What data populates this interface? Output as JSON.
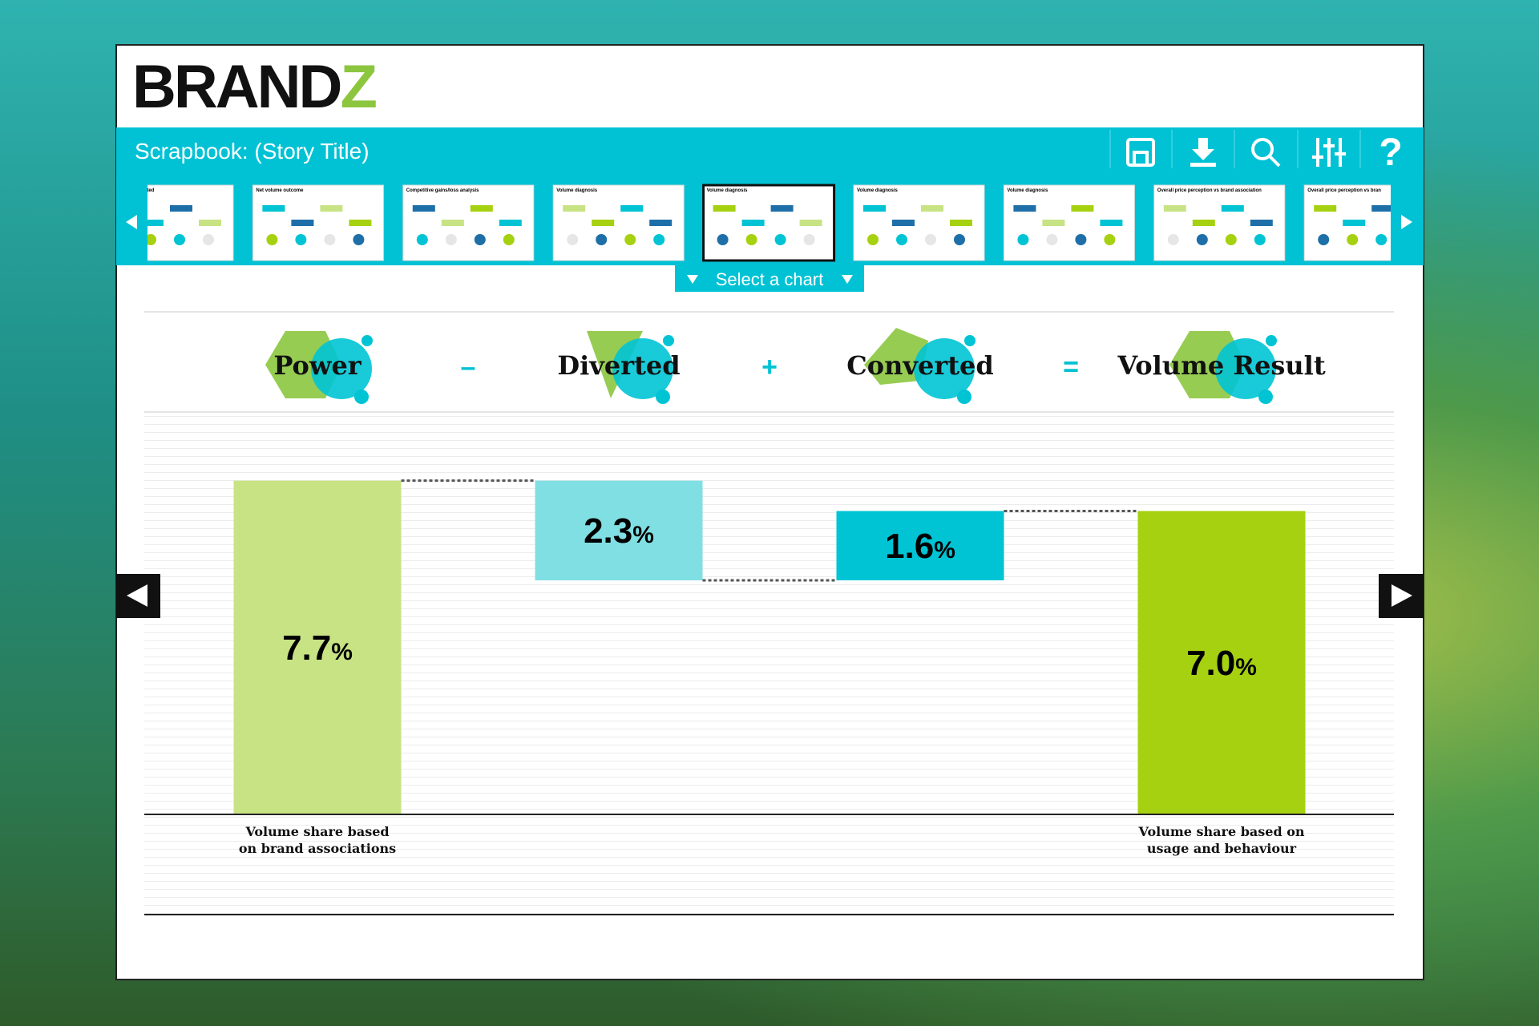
{
  "app": {
    "logo": {
      "main": "BRAND",
      "accent": "Z"
    },
    "toolbar_title": "Scrapbook: (Story Title)",
    "help": "?",
    "select_label": "Select a chart",
    "thumbnails": [
      "n journey: Converted",
      "Net volume outcome",
      "Competitive gains/loss analysis",
      "Volume diagnosis",
      "Volume diagnosis",
      "Volume diagnosis",
      "Volume diagnosis",
      "Overall price perception vs brand association",
      "Overall price perception vs bran"
    ],
    "selected_thumbnail": 4
  },
  "chart_data": {
    "type": "waterfall",
    "categories": [
      "Power",
      "Diverted",
      "Converted",
      "Volume Result"
    ],
    "operators": [
      "–",
      "+",
      "="
    ],
    "measures": [
      "absolute",
      "decrease",
      "increase",
      "total"
    ],
    "values": [
      7.7,
      2.3,
      1.6,
      7.0
    ],
    "value_labels": [
      "7.7%",
      "2.3%",
      "1.6%",
      "7.0%"
    ],
    "colors": [
      "#c8e384",
      "#80dfe3",
      "#00c4d4",
      "#a6d110"
    ],
    "notes": [
      [
        "Volume share based",
        "on brand associations"
      ],
      null,
      null,
      [
        "Volume share based on",
        "usage and behaviour"
      ]
    ]
  }
}
